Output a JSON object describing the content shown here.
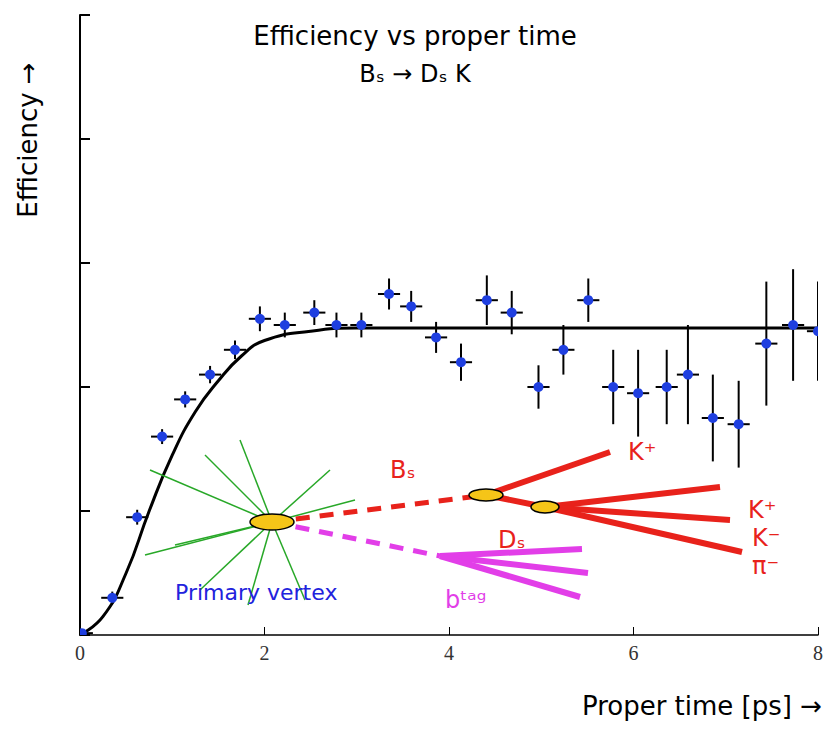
{
  "chart_data": {
    "type": "scatter",
    "title": "Efficiency vs proper time",
    "subtitle": "Bₛ → Dₛ K",
    "x_label": "Proper time [ps] →",
    "y_label": "Efficiency →",
    "xlim": [
      0,
      8
    ],
    "ylim": [
      0,
      1
    ],
    "xticks": [
      0,
      2,
      4,
      6,
      8
    ],
    "yticks": [
      0,
      0.2,
      0.4,
      0.6,
      0.8,
      1
    ],
    "tick_labels": "x",
    "grid": false,
    "series": [
      {
        "type": "scatter",
        "color": "#1f3fe0",
        "marker": "circle",
        "x": [
          0.02,
          0.35,
          0.62,
          0.89,
          1.14,
          1.41,
          1.68,
          1.95,
          2.22,
          2.54,
          2.78,
          3.05,
          3.35,
          3.59,
          3.86,
          4.13,
          4.41,
          4.68,
          4.97,
          5.24,
          5.51,
          5.78,
          6.05,
          6.36,
          6.59,
          6.86,
          7.14,
          7.44,
          7.73,
          8.0
        ],
        "values": [
          0.003,
          0.06,
          0.19,
          0.32,
          0.38,
          0.42,
          0.46,
          0.51,
          0.5,
          0.52,
          0.5,
          0.5,
          0.55,
          0.53,
          0.48,
          0.44,
          0.54,
          0.52,
          0.4,
          0.46,
          0.54,
          0.4,
          0.39,
          0.4,
          0.42,
          0.35,
          0.34,
          0.47,
          0.5,
          0.49
        ],
        "errors": [
          0.005,
          0.01,
          0.012,
          0.012,
          0.013,
          0.014,
          0.015,
          0.02,
          0.02,
          0.02,
          0.02,
          0.02,
          0.025,
          0.025,
          0.025,
          0.03,
          0.04,
          0.035,
          0.035,
          0.04,
          0.035,
          0.06,
          0.07,
          0.06,
          0.08,
          0.07,
          0.07,
          0.1,
          0.09,
          0.08
        ],
        "x_errors": [
          0.12,
          0.12,
          0.12,
          0.12,
          0.12,
          0.12,
          0.12,
          0.12,
          0.12,
          0.12,
          0.12,
          0.12,
          0.12,
          0.12,
          0.12,
          0.12,
          0.12,
          0.12,
          0.12,
          0.12,
          0.12,
          0.12,
          0.12,
          0.12,
          0.12,
          0.12,
          0.12,
          0.12,
          0.12,
          0.12
        ]
      },
      {
        "type": "line",
        "color": "#000000",
        "line_style": "solid",
        "x": [
          0,
          0.25,
          0.5,
          0.75,
          1,
          1.25,
          1.5,
          1.75,
          2,
          2.5,
          3,
          4,
          6,
          8
        ],
        "values": [
          0,
          0.03,
          0.1,
          0.2,
          0.29,
          0.36,
          0.41,
          0.45,
          0.475,
          0.49,
          0.495,
          0.495,
          0.495,
          0.495
        ]
      }
    ],
    "annotations": {
      "primary_vertex": "Primary vertex",
      "b_meson": "Bₛ",
      "d_meson": "Dₛ",
      "bachelor_kaon": "K⁺",
      "d_kaon_plus": "K⁺",
      "d_kaon_minus": "K⁻",
      "d_pion": "π⁻",
      "tag": "bᵗᵃᵍ"
    }
  }
}
